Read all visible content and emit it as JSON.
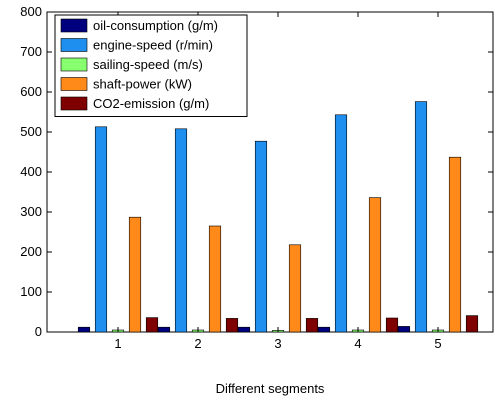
{
  "chart_data": {
    "type": "bar",
    "xlabel": "Different segments",
    "ylabel": "",
    "ylim": [
      0,
      800
    ],
    "yticks": [
      0,
      100,
      200,
      300,
      400,
      500,
      600,
      700,
      800
    ],
    "categories": [
      "1",
      "2",
      "3",
      "4",
      "5"
    ],
    "legend_position": "top-left",
    "grid": false,
    "series": [
      {
        "name": "oil-consumption (g/m)",
        "color": "#00007f",
        "values": [
          12,
          12,
          12,
          12,
          14
        ]
      },
      {
        "name": "engine-speed (r/min)",
        "color": "#1e8fef",
        "values": [
          513,
          508,
          477,
          543,
          576
        ]
      },
      {
        "name": "sailing-speed (m/s)",
        "color": "#87ff6e",
        "values": [
          5,
          5,
          4,
          5,
          5
        ]
      },
      {
        "name": "shaft-power (kW)",
        "color": "#ff8a1a",
        "values": [
          287,
          265,
          218,
          336,
          437
        ]
      },
      {
        "name": "CO2-emission (g/m)",
        "color": "#7f0000",
        "values": [
          36,
          34,
          34,
          35,
          41
        ]
      }
    ]
  }
}
